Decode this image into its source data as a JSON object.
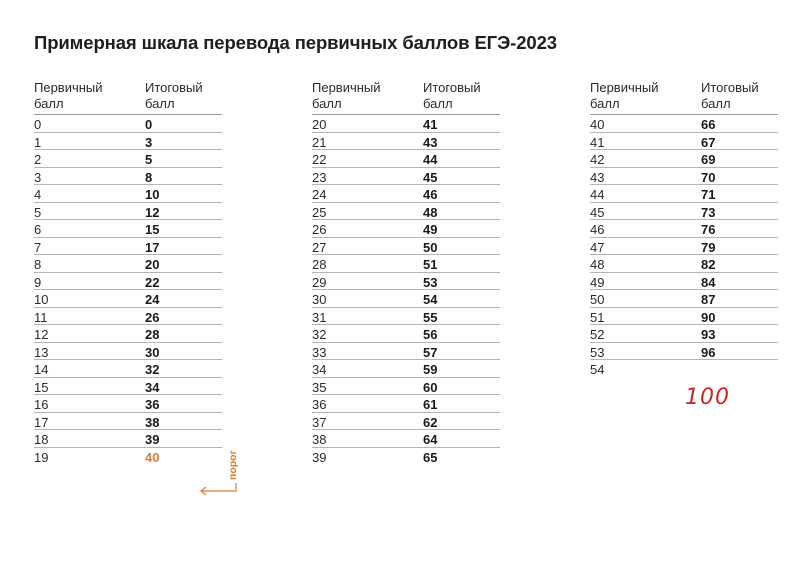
{
  "title": "Примерная шкала перевода первичных баллов ЕГЭ-2023",
  "headers": {
    "primary": "Первичный балл",
    "final": "Итоговый балл"
  },
  "tables": [
    {
      "rows": [
        {
          "p": "0",
          "f": "0"
        },
        {
          "p": "1",
          "f": "3"
        },
        {
          "p": "2",
          "f": "5"
        },
        {
          "p": "3",
          "f": "8"
        },
        {
          "p": "4",
          "f": "10"
        },
        {
          "p": "5",
          "f": "12"
        },
        {
          "p": "6",
          "f": "15"
        },
        {
          "p": "7",
          "f": "17"
        },
        {
          "p": "8",
          "f": "20"
        },
        {
          "p": "9",
          "f": "22"
        },
        {
          "p": "10",
          "f": "24"
        },
        {
          "p": "11",
          "f": "26"
        },
        {
          "p": "12",
          "f": "28"
        },
        {
          "p": "13",
          "f": "30"
        },
        {
          "p": "14",
          "f": "32"
        },
        {
          "p": "15",
          "f": "34"
        },
        {
          "p": "16",
          "f": "36"
        },
        {
          "p": "17",
          "f": "38"
        },
        {
          "p": "18",
          "f": "39"
        },
        {
          "p": "19",
          "f": "40"
        }
      ]
    },
    {
      "rows": [
        {
          "p": "20",
          "f": "41"
        },
        {
          "p": "21",
          "f": "43"
        },
        {
          "p": "22",
          "f": "44"
        },
        {
          "p": "23",
          "f": "45"
        },
        {
          "p": "24",
          "f": "46"
        },
        {
          "p": "25",
          "f": "48"
        },
        {
          "p": "26",
          "f": "49"
        },
        {
          "p": "27",
          "f": "50"
        },
        {
          "p": "28",
          "f": "51"
        },
        {
          "p": "29",
          "f": "53"
        },
        {
          "p": "30",
          "f": "54"
        },
        {
          "p": "31",
          "f": "55"
        },
        {
          "p": "32",
          "f": "56"
        },
        {
          "p": "33",
          "f": "57"
        },
        {
          "p": "34",
          "f": "59"
        },
        {
          "p": "35",
          "f": "60"
        },
        {
          "p": "36",
          "f": "61"
        },
        {
          "p": "37",
          "f": "62"
        },
        {
          "p": "38",
          "f": "64"
        },
        {
          "p": "39",
          "f": "65"
        }
      ]
    },
    {
      "rows": [
        {
          "p": "40",
          "f": "66"
        },
        {
          "p": "41",
          "f": "67"
        },
        {
          "p": "42",
          "f": "69"
        },
        {
          "p": "43",
          "f": "70"
        },
        {
          "p": "44",
          "f": "71"
        },
        {
          "p": "45",
          "f": "73"
        },
        {
          "p": "46",
          "f": "76"
        },
        {
          "p": "47",
          "f": "79"
        },
        {
          "p": "48",
          "f": "82"
        },
        {
          "p": "49",
          "f": "84"
        },
        {
          "p": "50",
          "f": "87"
        },
        {
          "p": "51",
          "f": "90"
        },
        {
          "p": "52",
          "f": "93"
        },
        {
          "p": "53",
          "f": "96"
        },
        {
          "p": "54",
          "f": ""
        }
      ]
    }
  ],
  "threshold": {
    "label": "порог",
    "row": "19",
    "value": "40",
    "color": "#e07a2e"
  },
  "handwritten": {
    "text": "100",
    "row": "54",
    "color": "#c62828"
  }
}
